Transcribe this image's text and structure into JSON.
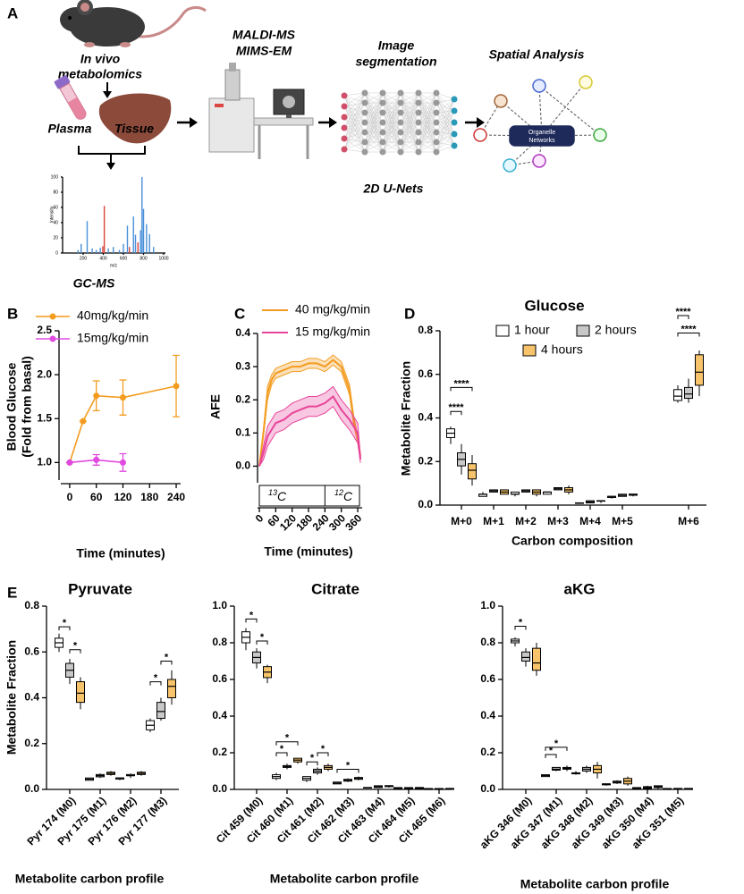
{
  "panel_labels": [
    "A",
    "B",
    "C",
    "D",
    "E"
  ],
  "workflow": {
    "in_vivo": [
      "In vivo",
      "metabolomics"
    ],
    "plasma": "Plasma",
    "tissue": "Tissue",
    "gcms": "GC-MS",
    "maldi": "MALDI-MS",
    "mims": "MIMS-EM",
    "segmentation": [
      "Image",
      "segmentation"
    ],
    "unet": "2D U-Nets",
    "spatial": "Spatial Analysis",
    "organelle": [
      "Organelle",
      "Networks"
    ]
  },
  "chart_data": [
    {
      "type": "spectrum",
      "xlabel": "m/z",
      "ylabel": "Intensity",
      "xlim": [
        0,
        1000
      ],
      "ylim": [
        0,
        100
      ],
      "xticks": [
        200,
        400,
        600,
        800,
        1000
      ],
      "yticks": [
        0,
        20,
        40,
        60,
        80,
        100
      ],
      "x": [
        150,
        180,
        240,
        290,
        330,
        370,
        395,
        410,
        450,
        500,
        560,
        600,
        640,
        660,
        700,
        720,
        745,
        770,
        785,
        800,
        830,
        860,
        900
      ],
      "values": [
        4,
        12,
        42,
        6,
        4,
        7,
        9,
        62,
        6,
        8,
        4,
        12,
        36,
        8,
        48,
        24,
        14,
        30,
        100,
        58,
        38,
        25,
        8
      ],
      "colors": [
        "#4a90d9",
        "#4a90d9",
        "#4a90d9",
        "#4a90d9",
        "#4a90d9",
        "#4a90d9",
        "#d9443a",
        "#d9443a",
        "#4a90d9",
        "#4a90d9",
        "#4a90d9",
        "#4a90d9",
        "#4a90d9",
        "#d9443a",
        "#4a90d9",
        "#4a90d9",
        "#d9443a",
        "#4a90d9",
        "#4a90d9",
        "#4a90d9",
        "#4a90d9",
        "#4a90d9",
        "#4a90d9"
      ]
    },
    {
      "type": "line",
      "xlabel": "Time (minutes)",
      "ylabel": [
        "Blood Glucose",
        "(Fold from basal)"
      ],
      "xlim": [
        -20,
        250
      ],
      "ylim": [
        0.8,
        2.5
      ],
      "xticks": [
        0,
        60,
        120,
        180,
        240
      ],
      "yticks": [
        {
          "value": 1,
          "label": "1.0"
        },
        1.5,
        {
          "value": 2,
          "label": "2.0"
        },
        2.5
      ],
      "series": [
        {
          "name": "40mg/kg/min",
          "color": "#f39c1f",
          "x": [
            0,
            30,
            60,
            120,
            240
          ],
          "values": [
            1.0,
            1.47,
            1.76,
            1.74,
            1.87
          ],
          "errors": [
            0,
            0,
            0.17,
            0.2,
            0.35
          ]
        },
        {
          "name": "15mg/kg/min",
          "color": "#e04ae0",
          "x": [
            0,
            60,
            120
          ],
          "values": [
            1.0,
            1.03,
            1.0
          ],
          "errors": [
            0,
            0.06,
            0.1
          ]
        }
      ]
    },
    {
      "type": "band",
      "xlabel": "Time (minutes)",
      "ylabel": "AFE",
      "xlim": [
        0,
        375
      ],
      "ylim": [
        -0.05,
        0.4
      ],
      "xticks": [
        0,
        60,
        120,
        180,
        240,
        300,
        360
      ],
      "yticks": [
        {
          "value": 0,
          "label": "0.0"
        },
        0.1,
        0.2,
        0.3,
        0.4
      ],
      "isotopes": [
        {
          "mass": "13",
          "element": "C"
        },
        {
          "mass": "12",
          "element": "C"
        }
      ],
      "x": [
        0,
        15,
        30,
        45,
        60,
        90,
        120,
        150,
        180,
        210,
        240,
        270,
        300,
        330,
        345,
        360,
        370
      ],
      "series": [
        {
          "name": "40 mg/kg/min",
          "color": "#f39c1f",
          "values": [
            0,
            0.1,
            0.22,
            0.26,
            0.28,
            0.29,
            0.3,
            0.3,
            0.31,
            0.31,
            0.3,
            0.32,
            0.3,
            0.23,
            0.14,
            0.08,
            0.03
          ],
          "lower": [
            0,
            0.09,
            0.2,
            0.245,
            0.265,
            0.275,
            0.285,
            0.285,
            0.295,
            0.295,
            0.285,
            0.305,
            0.285,
            0.215,
            0.125,
            0.07,
            0.02
          ],
          "upper": [
            0,
            0.11,
            0.24,
            0.275,
            0.295,
            0.305,
            0.315,
            0.315,
            0.325,
            0.325,
            0.315,
            0.335,
            0.315,
            0.245,
            0.155,
            0.09,
            0.04
          ]
        },
        {
          "name": "15 mg/kg/min",
          "color": "#e8449a",
          "values": [
            0,
            0.04,
            0.09,
            0.11,
            0.13,
            0.14,
            0.16,
            0.17,
            0.18,
            0.18,
            0.19,
            0.21,
            0.17,
            0.14,
            0.12,
            0.1,
            0.02
          ],
          "lower": [
            0,
            0.02,
            0.06,
            0.08,
            0.1,
            0.11,
            0.13,
            0.14,
            0.15,
            0.15,
            0.16,
            0.18,
            0.14,
            0.11,
            0.09,
            0.07,
            0.01
          ],
          "upper": [
            0,
            0.06,
            0.12,
            0.14,
            0.16,
            0.17,
            0.19,
            0.2,
            0.21,
            0.21,
            0.22,
            0.24,
            0.2,
            0.17,
            0.15,
            0.13,
            0.03
          ]
        }
      ]
    },
    {
      "type": "box",
      "title": "Glucose",
      "xlabel": "Carbon composition",
      "ylabel": "Metabolite Fraction",
      "ylim": [
        0,
        0.8
      ],
      "yticks": [
        {
          "value": 0,
          "label": "0.0"
        },
        0.2,
        0.4,
        0.6,
        0.8
      ],
      "categories": [
        "M+0",
        "M+1",
        "M+2",
        "M+3",
        "M+4",
        "M+5",
        "M+6"
      ],
      "series": [
        {
          "name": "1 hour",
          "color": "#ffffff",
          "values": [
            [
              0.28,
              0.31,
              0.33,
              0.35,
              0.36
            ],
            [
              0.04,
              0.04,
              0.05,
              0.05,
              0.06
            ],
            [
              0.04,
              0.05,
              0.05,
              0.06,
              0.06
            ],
            [
              0.05,
              0.05,
              0.06,
              0.06,
              0.06
            ],
            [
              0.01,
              0.01,
              0.01,
              0.01,
              0.01
            ],
            [
              0.03,
              0.035,
              0.04,
              0.04,
              0.04
            ],
            [
              0.47,
              0.48,
              0.5,
              0.53,
              0.55
            ]
          ]
        },
        {
          "name": "2 hours",
          "color": "#c8c8c8",
          "values": [
            [
              0.14,
              0.18,
              0.21,
              0.24,
              0.28
            ],
            [
              0.06,
              0.06,
              0.065,
              0.07,
              0.07
            ],
            [
              0.06,
              0.06,
              0.065,
              0.07,
              0.07
            ],
            [
              0.07,
              0.07,
              0.075,
              0.08,
              0.08
            ],
            [
              0.01,
              0.01,
              0.015,
              0.02,
              0.02
            ],
            [
              0.04,
              0.04,
              0.045,
              0.05,
              0.05
            ],
            [
              0.47,
              0.49,
              0.51,
              0.54,
              0.58
            ]
          ]
        },
        {
          "name": "4 hours",
          "color": "#f7c46c",
          "values": [
            [
              0.09,
              0.12,
              0.16,
              0.19,
              0.23
            ],
            [
              0.05,
              0.05,
              0.06,
              0.07,
              0.07
            ],
            [
              0.04,
              0.05,
              0.06,
              0.07,
              0.07
            ],
            [
              0.05,
              0.06,
              0.07,
              0.08,
              0.09
            ],
            [
              0.01,
              0.02,
              0.02,
              0.02,
              0.02
            ],
            [
              0.04,
              0.045,
              0.05,
              0.05,
              0.05
            ],
            [
              0.5,
              0.55,
              0.61,
              0.69,
              0.71
            ]
          ]
        }
      ],
      "annotations": [
        "****",
        "****",
        "****",
        "****"
      ]
    },
    {
      "type": "box",
      "title": "Pyruvate",
      "xlabel": "Metabolite carbon profile",
      "ylabel": "Metabolite Fraction",
      "ylim": [
        0,
        0.8
      ],
      "yticks": [
        {
          "value": 0,
          "label": "0.0"
        },
        0.2,
        0.4,
        0.6,
        0.8
      ],
      "categories": [
        "Pyr 174 (M0)",
        "Pyr 175 (M1)",
        "Pyr 176 (M2)",
        "Pyr 177 (M3)"
      ],
      "series": [
        {
          "color": "#ffffff",
          "values": [
            [
              0.6,
              0.62,
              0.64,
              0.66,
              0.68
            ],
            [
              0.04,
              0.04,
              0.045,
              0.05,
              0.05
            ],
            [
              0.04,
              0.045,
              0.05,
              0.05,
              0.05
            ],
            [
              0.25,
              0.26,
              0.28,
              0.3,
              0.31
            ]
          ]
        },
        {
          "color": "#c8c8c8",
          "values": [
            [
              0.46,
              0.49,
              0.52,
              0.55,
              0.57
            ],
            [
              0.05,
              0.055,
              0.06,
              0.065,
              0.07
            ],
            [
              0.05,
              0.06,
              0.06,
              0.065,
              0.07
            ],
            [
              0.3,
              0.31,
              0.34,
              0.38,
              0.4
            ]
          ]
        },
        {
          "color": "#f7c46c",
          "values": [
            [
              0.35,
              0.38,
              0.42,
              0.47,
              0.49
            ],
            [
              0.06,
              0.065,
              0.07,
              0.075,
              0.08
            ],
            [
              0.06,
              0.065,
              0.07,
              0.075,
              0.08
            ],
            [
              0.37,
              0.4,
              0.45,
              0.48,
              0.52
            ]
          ]
        }
      ],
      "annotations": [
        "*",
        "*",
        "*",
        "*"
      ]
    },
    {
      "type": "box",
      "title": "Citrate",
      "xlabel": "Metabolite carbon profile",
      "ylim": [
        0,
        1
      ],
      "yticks": [
        {
          "value": 0,
          "label": "0.0"
        },
        0.2,
        0.4,
        0.6,
        0.8,
        {
          "value": 1,
          "label": "1.0"
        }
      ],
      "categories": [
        "Cit 459 (M0)",
        "Cit 460 (M1)",
        "Cit 461 (M2)",
        "Cit 462 (M3)",
        "Cit 463 (M4)",
        "Cit 464 (M5)",
        "Cit 465 (M6)"
      ],
      "series": [
        {
          "color": "#ffffff",
          "values": [
            [
              0.76,
              0.8,
              0.83,
              0.86,
              0.88
            ],
            [
              0.05,
              0.06,
              0.07,
              0.08,
              0.09
            ],
            [
              0.04,
              0.05,
              0.06,
              0.07,
              0.07
            ],
            [
              0.03,
              0.03,
              0.035,
              0.04,
              0.04
            ],
            [
              0.01,
              0.01,
              0.01,
              0.01,
              0.01
            ],
            [
              0,
              0,
              0.005,
              0.01,
              0.01
            ],
            [
              0,
              0,
              0,
              0.005,
              0.005
            ]
          ]
        },
        {
          "color": "#c8c8c8",
          "values": [
            [
              0.66,
              0.69,
              0.72,
              0.75,
              0.77
            ],
            [
              0.11,
              0.12,
              0.125,
              0.13,
              0.14
            ],
            [
              0.08,
              0.09,
              0.1,
              0.11,
              0.12
            ],
            [
              0.04,
              0.045,
              0.05,
              0.055,
              0.06
            ],
            [
              0.01,
              0.01,
              0.015,
              0.02,
              0.02
            ],
            [
              0,
              0.005,
              0.005,
              0.01,
              0.01
            ],
            [
              0,
              0,
              0,
              0.005,
              0.005
            ]
          ]
        },
        {
          "color": "#f7c46c",
          "values": [
            [
              0.58,
              0.61,
              0.64,
              0.67,
              0.68
            ],
            [
              0.14,
              0.15,
              0.16,
              0.17,
              0.17
            ],
            [
              0.1,
              0.11,
              0.12,
              0.13,
              0.14
            ],
            [
              0.05,
              0.055,
              0.06,
              0.065,
              0.07
            ],
            [
              0.01,
              0.015,
              0.02,
              0.02,
              0.02
            ],
            [
              0,
              0.005,
              0.01,
              0.01,
              0.01
            ],
            [
              0,
              0,
              0.005,
              0.005,
              0.005
            ]
          ]
        }
      ],
      "annotations": [
        "*",
        "*",
        "*",
        "*",
        "*",
        "*",
        "*"
      ]
    },
    {
      "type": "box",
      "title": "aKG",
      "xlabel": "Metabolite carbon profile",
      "ylim": [
        0,
        1
      ],
      "yticks": [
        {
          "value": 0,
          "label": "0.0"
        },
        0.2,
        0.4,
        0.6,
        0.8,
        {
          "value": 1,
          "label": "1.0"
        }
      ],
      "categories": [
        "aKG 346 (M0)",
        "aKG 347 (M1)",
        "aKG 348 (M2)",
        "aKG 349 (M3)",
        "aKG 350 (M4)",
        "aKG 351 (M5)"
      ],
      "series": [
        {
          "color": "#ffffff",
          "values": [
            [
              0.78,
              0.8,
              0.81,
              0.82,
              0.83
            ],
            [
              0.07,
              0.07,
              0.075,
              0.08,
              0.08
            ],
            [
              0.08,
              0.085,
              0.09,
              0.09,
              0.1
            ],
            [
              0.02,
              0.025,
              0.03,
              0.03,
              0.03
            ],
            [
              0,
              0.005,
              0.005,
              0.01,
              0.01
            ],
            [
              0,
              0,
              0,
              0.005,
              0.005
            ]
          ]
        },
        {
          "color": "#c8c8c8",
          "values": [
            [
              0.67,
              0.7,
              0.72,
              0.75,
              0.77
            ],
            [
              0.1,
              0.105,
              0.11,
              0.12,
              0.12
            ],
            [
              0.09,
              0.1,
              0.11,
              0.12,
              0.13
            ],
            [
              0.03,
              0.035,
              0.04,
              0.045,
              0.05
            ],
            [
              0,
              0.005,
              0.01,
              0.015,
              0.02
            ],
            [
              0,
              0,
              0.005,
              0.005,
              0.005
            ]
          ]
        },
        {
          "color": "#f7c46c",
          "values": [
            [
              0.62,
              0.65,
              0.69,
              0.77,
              0.8
            ],
            [
              0.1,
              0.11,
              0.115,
              0.12,
              0.13
            ],
            [
              0.06,
              0.09,
              0.11,
              0.13,
              0.15
            ],
            [
              0.02,
              0.03,
              0.045,
              0.06,
              0.07
            ],
            [
              0,
              0.01,
              0.015,
              0.02,
              0.02
            ],
            [
              0,
              0,
              0.005,
              0.005,
              0.005
            ]
          ]
        }
      ],
      "annotations": [
        "*",
        "*",
        "*"
      ]
    }
  ]
}
